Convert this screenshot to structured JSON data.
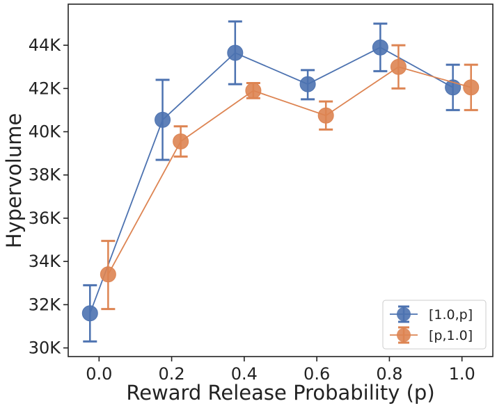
{
  "chart_data": {
    "type": "line",
    "title": "",
    "xlabel": "Reward Release Probability (p)",
    "ylabel": "Hypervolume",
    "xlim": [
      -0.085,
      1.085
    ],
    "ylim": [
      29600,
      45900
    ],
    "x_ticks": [
      0.0,
      0.2,
      0.4,
      0.6,
      0.8,
      1.0
    ],
    "x_tick_labels": [
      "0.0",
      "0.2",
      "0.4",
      "0.6",
      "0.8",
      "1.0"
    ],
    "y_ticks": [
      30000,
      32000,
      34000,
      36000,
      38000,
      40000,
      42000,
      44000
    ],
    "y_tick_labels": [
      "30K",
      "32K",
      "34K",
      "36K",
      "38K",
      "40K",
      "42K",
      "44K"
    ],
    "grid": false,
    "legend_position": "bottom-right",
    "series": [
      {
        "name": "[1.0,p]",
        "color": "#4c72b0",
        "x": [
          -0.025,
          0.175,
          0.375,
          0.575,
          0.775,
          0.975
        ],
        "y": [
          31600,
          40550,
          43650,
          42200,
          43900,
          42050
        ],
        "err_low": [
          30300,
          38700,
          42200,
          41500,
          42800,
          41000
        ],
        "err_high": [
          32900,
          42400,
          45100,
          42850,
          45000,
          43100
        ]
      },
      {
        "name": "[p,1.0]",
        "color": "#dd8452",
        "x": [
          0.025,
          0.225,
          0.425,
          0.625,
          0.825,
          1.025
        ],
        "y": [
          33400,
          39550,
          41900,
          40750,
          43000,
          42050
        ],
        "err_low": [
          31800,
          38850,
          41550,
          40100,
          42000,
          41000
        ],
        "err_high": [
          34950,
          40250,
          42250,
          41400,
          44000,
          43100
        ]
      }
    ]
  }
}
